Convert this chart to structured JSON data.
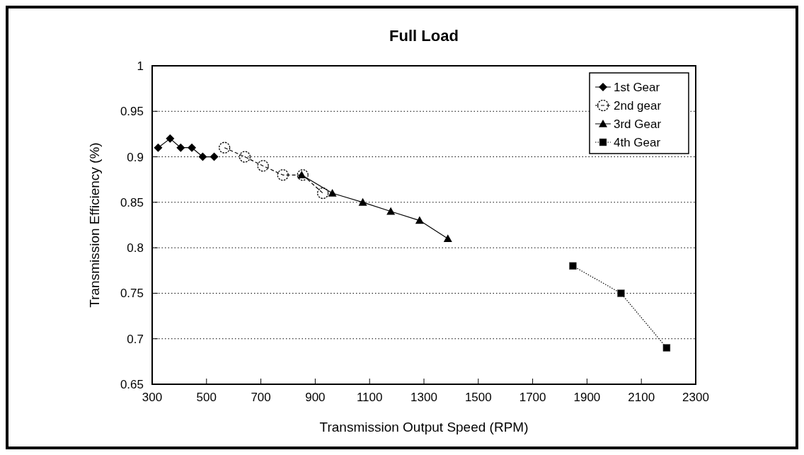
{
  "chart_data": {
    "type": "line",
    "title": "Full Load",
    "xlabel": "Transmission Output Speed (RPM)",
    "ylabel": "Transmission Efficiency (%)",
    "xlim": [
      300,
      2300
    ],
    "xticks": [
      300,
      500,
      700,
      900,
      1100,
      1300,
      1500,
      1700,
      1900,
      2100,
      2300
    ],
    "ylim": [
      0.65,
      1
    ],
    "yticks": [
      0.65,
      0.7,
      0.75,
      0.8,
      0.85,
      0.9,
      0.95,
      1
    ],
    "grid": "y",
    "legend": "top right",
    "series": [
      {
        "name": "1st Gear",
        "color": "#000000",
        "marker": "diamond",
        "line_style": "solid",
        "x": [
          322,
          366,
          405,
          446,
          486,
          528
        ],
        "values": [
          0.91,
          0.92,
          0.91,
          0.91,
          0.9,
          0.9
        ]
      },
      {
        "name": "2nd gear",
        "color": "#000000",
        "marker": "circle",
        "line_style": "dashed",
        "x": [
          566,
          641,
          708,
          781,
          854,
          928
        ],
        "values": [
          0.91,
          0.9,
          0.89,
          0.88,
          0.88,
          0.86
        ]
      },
      {
        "name": "3rd Gear",
        "color": "#000000",
        "marker": "triangle",
        "line_style": "solid",
        "x": [
          850,
          963,
          1075,
          1178,
          1284,
          1388
        ],
        "values": [
          0.88,
          0.86,
          0.85,
          0.84,
          0.83,
          0.81
        ]
      },
      {
        "name": "4th Gear",
        "color": "#000000",
        "marker": "square",
        "line_style": "dotted",
        "x": [
          1848,
          2025,
          2193
        ],
        "values": [
          0.78,
          0.75,
          0.69
        ]
      }
    ]
  }
}
